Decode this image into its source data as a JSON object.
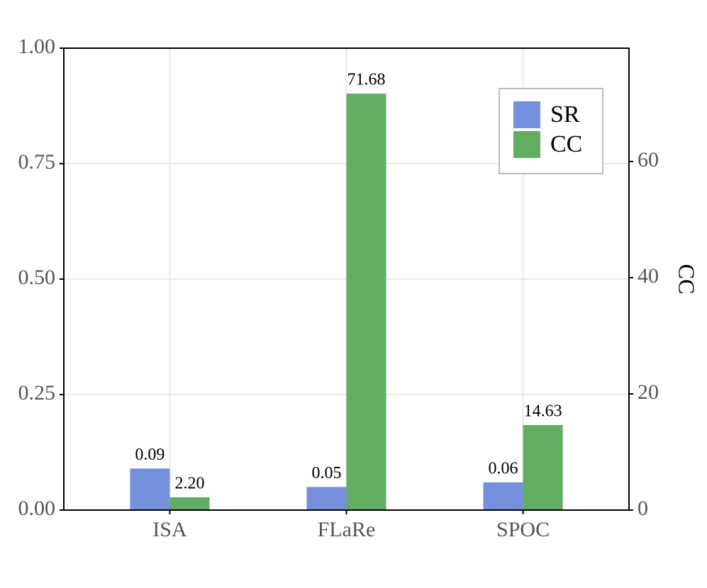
{
  "chart_data": {
    "type": "bar",
    "categories": [
      "ISA",
      "FLaRe",
      "SPOC"
    ],
    "series": [
      {
        "name": "SR",
        "color": "#7590dc",
        "values": [
          0.09,
          0.05,
          0.06
        ],
        "value_labels": [
          "0.09",
          "0.05",
          "0.06"
        ]
      },
      {
        "name": "CC",
        "color": "#62ad62",
        "axis": "y2",
        "values": [
          2.2,
          71.68,
          14.63
        ],
        "value_labels": [
          "2.20",
          "71.68",
          "14.63"
        ]
      }
    ],
    "ylim": [
      0,
      1
    ],
    "yticks": [
      {
        "value": 0,
        "label": "0.00"
      },
      {
        "value": 0.25,
        "label": "0.25"
      },
      {
        "value": 0.5,
        "label": "0.50"
      },
      {
        "value": 0.75,
        "label": "0.75"
      },
      {
        "value": 1,
        "label": "1.00"
      }
    ],
    "y2label": "CC",
    "y2lim": [
      0,
      79.5
    ],
    "y2ticks": [
      0,
      20,
      40,
      60
    ],
    "grid": true,
    "legend": "upper right"
  }
}
